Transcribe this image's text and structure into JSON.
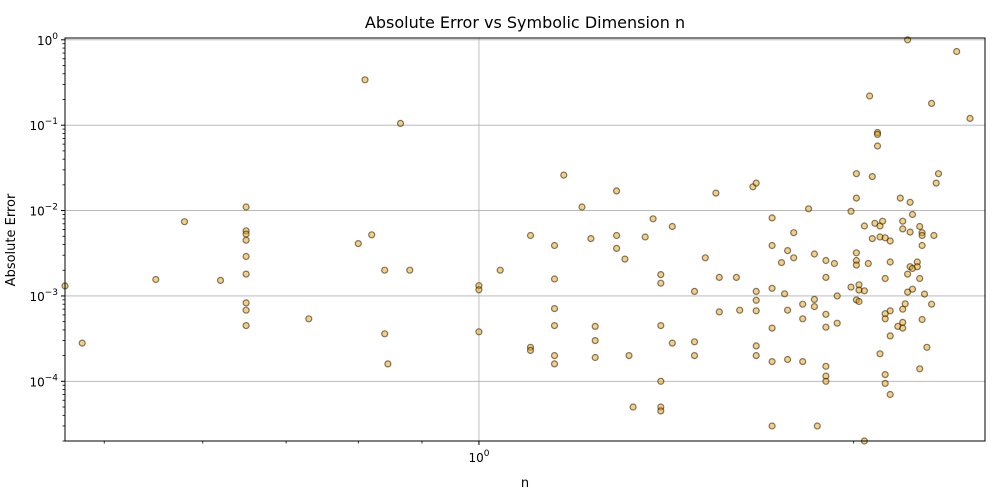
{
  "chart_data": {
    "type": "scatter",
    "title": "Absolute Error vs Symbolic Dimension n",
    "xlabel": "n",
    "ylabel": "Absolute Error",
    "xscale": "log",
    "yscale": "log",
    "xlim": [
      0.465,
      2.55
    ],
    "ylim": [
      2e-05,
      1.05
    ],
    "x_ticks": [
      {
        "value": 1,
        "label": "10^0"
      }
    ],
    "y_ticks": [
      {
        "value": 0.0001,
        "label": "10^-4"
      },
      {
        "value": 0.001,
        "label": "10^-3"
      },
      {
        "value": 0.01,
        "label": "10^-2"
      },
      {
        "value": 0.1,
        "label": "10^-1"
      },
      {
        "value": 1,
        "label": "10^0"
      }
    ],
    "grid": true,
    "marker_color": "#f0a000",
    "marker_alpha": 0.5,
    "points": [
      [
        0.465,
        0.00131
      ],
      [
        0.48,
        0.00028
      ],
      [
        0.55,
        0.00156
      ],
      [
        0.58,
        0.0074
      ],
      [
        0.62,
        0.00152
      ],
      [
        0.65,
        0.011
      ],
      [
        0.65,
        0.0058
      ],
      [
        0.65,
        0.0053
      ],
      [
        0.65,
        0.0045
      ],
      [
        0.65,
        0.0029
      ],
      [
        0.65,
        0.0018
      ],
      [
        0.65,
        0.00083
      ],
      [
        0.65,
        0.00068
      ],
      [
        0.65,
        0.00045
      ],
      [
        0.73,
        0.00054
      ],
      [
        0.8,
        0.0041
      ],
      [
        0.81,
        0.34
      ],
      [
        0.82,
        0.0052
      ],
      [
        0.84,
        0.002
      ],
      [
        0.84,
        0.00036
      ],
      [
        0.845,
        0.00016
      ],
      [
        0.865,
        0.105
      ],
      [
        0.88,
        0.002
      ],
      [
        1.0,
        0.00132
      ],
      [
        1.0,
        0.00118
      ],
      [
        1.0,
        0.00038
      ],
      [
        1.04,
        0.002
      ],
      [
        1.1,
        0.0051
      ],
      [
        1.1,
        0.00025
      ],
      [
        1.1,
        0.00023
      ],
      [
        1.15,
        0.0039
      ],
      [
        1.15,
        0.00158
      ],
      [
        1.15,
        0.00071
      ],
      [
        1.15,
        0.00045
      ],
      [
        1.15,
        0.0002
      ],
      [
        1.15,
        0.00016
      ],
      [
        1.17,
        0.026
      ],
      [
        1.21,
        0.011
      ],
      [
        1.23,
        0.0047
      ],
      [
        1.24,
        0.00044
      ],
      [
        1.24,
        0.0003
      ],
      [
        1.24,
        0.00019
      ],
      [
        1.29,
        0.017
      ],
      [
        1.29,
        0.0051
      ],
      [
        1.29,
        0.0036
      ],
      [
        1.31,
        0.0027
      ],
      [
        1.32,
        0.0002
      ],
      [
        1.33,
        5e-05
      ],
      [
        1.36,
        0.0049
      ],
      [
        1.38,
        0.008
      ],
      [
        1.4,
        0.00178
      ],
      [
        1.4,
        0.00141
      ],
      [
        1.4,
        0.00045
      ],
      [
        1.4,
        0.0001
      ],
      [
        1.4,
        5e-05
      ],
      [
        1.4,
        4.5e-05
      ],
      [
        1.43,
        0.0065
      ],
      [
        1.43,
        0.00028
      ],
      [
        1.49,
        0.00113
      ],
      [
        1.49,
        0.00029
      ],
      [
        1.49,
        0.0002
      ],
      [
        1.52,
        0.0028
      ],
      [
        1.55,
        0.016
      ],
      [
        1.56,
        0.00165
      ],
      [
        1.56,
        0.00065
      ],
      [
        1.61,
        0.00165
      ],
      [
        1.62,
        0.00068
      ],
      [
        1.66,
        0.019
      ],
      [
        1.67,
        0.021
      ],
      [
        1.67,
        0.00113
      ],
      [
        1.67,
        0.00089
      ],
      [
        1.67,
        0.00067
      ],
      [
        1.67,
        0.00026
      ],
      [
        1.67,
        0.0002
      ],
      [
        1.72,
        0.0082
      ],
      [
        1.72,
        0.0039
      ],
      [
        1.72,
        0.00123
      ],
      [
        1.72,
        0.00042
      ],
      [
        1.72,
        0.00017
      ],
      [
        1.72,
        3e-05
      ],
      [
        1.75,
        0.00246
      ],
      [
        1.76,
        0.00106
      ],
      [
        1.77,
        0.0034
      ],
      [
        1.77,
        0.00068
      ],
      [
        1.77,
        0.00018
      ],
      [
        1.79,
        0.0028
      ],
      [
        1.79,
        0.0055
      ],
      [
        1.82,
        0.0008
      ],
      [
        1.82,
        0.00054
      ],
      [
        1.82,
        0.00017
      ],
      [
        1.84,
        0.0105
      ],
      [
        1.86,
        0.0031
      ],
      [
        1.86,
        0.00091
      ],
      [
        1.86,
        0.00075
      ],
      [
        1.87,
        3e-05
      ],
      [
        1.9,
        0.0026
      ],
      [
        1.9,
        0.00165
      ],
      [
        1.9,
        0.00061
      ],
      [
        1.9,
        0.00043
      ],
      [
        1.9,
        0.00015
      ],
      [
        1.9,
        0.000115
      ],
      [
        1.9,
        0.0001
      ],
      [
        1.93,
        0.0024
      ],
      [
        1.94,
        0.001
      ],
      [
        1.94,
        0.00048
      ],
      [
        1.99,
        0.0098
      ],
      [
        1.99,
        0.00127
      ],
      [
        2.01,
        0.027
      ],
      [
        2.01,
        0.014
      ],
      [
        2.01,
        0.0032
      ],
      [
        2.01,
        0.0026
      ],
      [
        2.01,
        0.0023
      ],
      [
        2.01,
        0.0009
      ],
      [
        2.02,
        0.00135
      ],
      [
        2.02,
        0.00117
      ],
      [
        2.02,
        0.00086
      ],
      [
        2.04,
        0.0066
      ],
      [
        2.04,
        0.00115
      ],
      [
        2.04,
        2e-05
      ],
      [
        2.055,
        0.0024
      ],
      [
        2.06,
        0.22
      ],
      [
        2.07,
        0.025
      ],
      [
        2.07,
        0.0047
      ],
      [
        2.08,
        0.0071
      ],
      [
        2.09,
        0.082
      ],
      [
        2.09,
        0.078
      ],
      [
        2.09,
        0.057
      ],
      [
        2.1,
        0.0066
      ],
      [
        2.1,
        0.0049
      ],
      [
        2.1,
        0.00021
      ],
      [
        2.11,
        0.0075
      ],
      [
        2.12,
        0.0048
      ],
      [
        2.12,
        0.0016
      ],
      [
        2.12,
        0.00062
      ],
      [
        2.12,
        0.00054
      ],
      [
        2.12,
        0.00012
      ],
      [
        2.12,
        9.45e-05
      ],
      [
        2.14,
        0.0044
      ],
      [
        2.14,
        0.0025
      ],
      [
        2.14,
        0.00067
      ],
      [
        2.14,
        0.00034
      ],
      [
        2.14,
        7e-05
      ],
      [
        2.17,
        0.00044
      ],
      [
        2.18,
        0.014
      ],
      [
        2.19,
        0.0061
      ],
      [
        2.19,
        0.0075
      ],
      [
        2.19,
        0.0007
      ],
      [
        2.19,
        0.00049
      ],
      [
        2.19,
        0.00042
      ],
      [
        2.2,
        0.00081
      ],
      [
        2.21,
        1.0
      ],
      [
        2.21,
        0.0018
      ],
      [
        2.21,
        0.00111
      ],
      [
        2.22,
        0.0056
      ],
      [
        2.22,
        0.0125
      ],
      [
        2.22,
        0.0022
      ],
      [
        2.23,
        0.009
      ],
      [
        2.23,
        0.0021
      ],
      [
        2.23,
        0.0012
      ],
      [
        2.25,
        0.0025
      ],
      [
        2.25,
        0.0022
      ],
      [
        2.26,
        0.0065
      ],
      [
        2.26,
        0.0016
      ],
      [
        2.26,
        0.00014
      ],
      [
        2.27,
        0.0055
      ],
      [
        2.27,
        0.0051
      ],
      [
        2.27,
        0.0039
      ],
      [
        2.27,
        0.00053
      ],
      [
        2.28,
        0.00105
      ],
      [
        2.29,
        0.00025
      ],
      [
        2.31,
        0.18
      ],
      [
        2.31,
        0.0008
      ],
      [
        2.32,
        0.0051
      ],
      [
        2.33,
        0.021
      ],
      [
        2.34,
        0.027
      ],
      [
        2.42,
        0.73
      ],
      [
        2.48,
        0.12
      ]
    ]
  }
}
